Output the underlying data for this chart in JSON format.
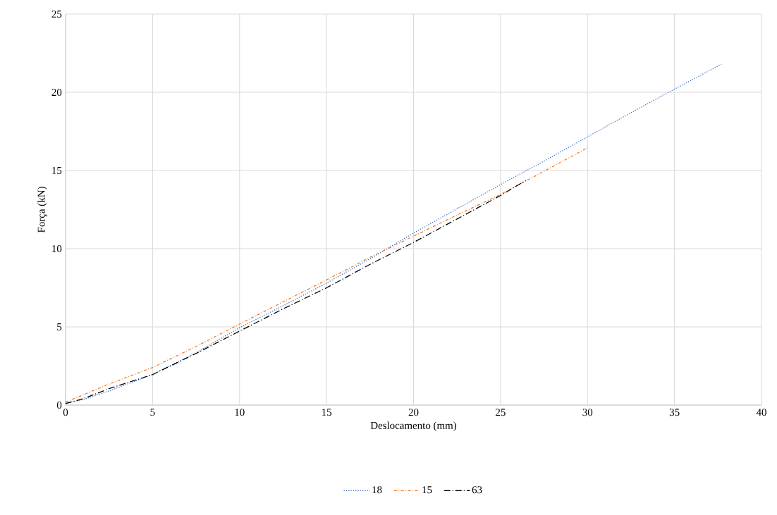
{
  "chart_data": {
    "type": "line",
    "xlabel": "Deslocamento (mm)",
    "ylabel": "Força (kN)",
    "xlim": [
      0,
      40
    ],
    "ylim": [
      0,
      25
    ],
    "xticks": [
      0,
      5,
      10,
      15,
      20,
      25,
      30,
      35,
      40
    ],
    "yticks": [
      0,
      5,
      10,
      15,
      20,
      25
    ],
    "grid": true,
    "legend": "bottom",
    "series": [
      {
        "name": "18",
        "color": "#4472c4",
        "line_style": "dotted",
        "x": [
          0,
          1,
          2.5,
          5,
          7.5,
          10,
          12.5,
          15,
          17.5,
          20,
          22.5,
          25,
          27.5,
          30,
          32.5,
          35,
          37.7
        ],
        "values": [
          0.1,
          0.35,
          0.9,
          1.95,
          3.35,
          4.95,
          6.35,
          7.8,
          9.35,
          11.0,
          12.55,
          14.1,
          15.6,
          17.15,
          18.7,
          20.2,
          21.8
        ]
      },
      {
        "name": "15",
        "color": "#ed7d31",
        "line_style": "dashdot",
        "x": [
          0,
          1,
          2.5,
          5,
          7.5,
          10,
          12.5,
          15,
          17.5,
          20,
          22.5,
          25,
          27.5,
          30
        ],
        "values": [
          0.2,
          0.65,
          1.35,
          2.4,
          3.75,
          5.18,
          6.6,
          8.0,
          9.45,
          10.8,
          12.15,
          13.47,
          14.95,
          16.45
        ]
      },
      {
        "name": "63",
        "color": "#000000",
        "line_style": "longdashdot",
        "x": [
          0,
          1,
          2.5,
          5,
          7.5,
          10,
          12.5,
          15,
          17.5,
          20,
          22.5,
          25,
          26.46
        ],
        "values": [
          0.1,
          0.4,
          1.05,
          1.95,
          3.3,
          4.73,
          6.15,
          7.5,
          9.0,
          10.4,
          11.9,
          13.4,
          14.37
        ]
      }
    ]
  }
}
